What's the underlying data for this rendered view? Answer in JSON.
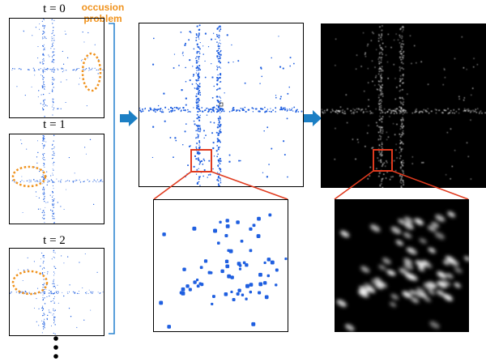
{
  "frames": [
    {
      "label": "t = 0"
    },
    {
      "label": "t = 1"
    },
    {
      "label": "t = 2"
    }
  ],
  "annotation": {
    "line1": "occusion",
    "line2": "problem"
  },
  "colors": {
    "lidar_point": "#1F5FE0",
    "occlusion_ellipse": "#F0931E",
    "zoom_box": "#E03A1E",
    "bracket": "#2E86D0",
    "arrow": "#1C7FC4",
    "heatmap_bg": "#000000",
    "heatmap_point": "#FFFFFF"
  }
}
